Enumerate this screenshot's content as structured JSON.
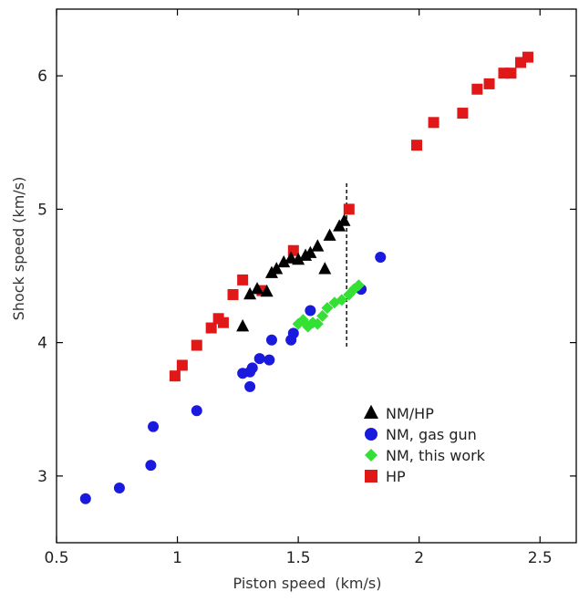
{
  "chart_data": {
    "type": "scatter",
    "xlabel": "Piston speed  (km/s)",
    "ylabel": "Shock speed (km/s)",
    "xlim": [
      0.5,
      2.65
    ],
    "ylim": [
      2.5,
      6.5
    ],
    "x_ticks": [
      0.5,
      1,
      1.5,
      2,
      2.5
    ],
    "x_tick_labels": [
      "0.5",
      "1",
      "1.5",
      "2",
      "2.5"
    ],
    "y_ticks": [
      3,
      4,
      5,
      6
    ],
    "y_tick_labels": [
      "3",
      "4",
      "5",
      "6"
    ],
    "grid": false,
    "legend_position": "bottom-right",
    "reference_line": {
      "x": 1.7,
      "y_from": 3.97,
      "y_to": 5.2,
      "style": "dashed"
    },
    "series": [
      {
        "name": "NM/HP",
        "marker": "triangle",
        "color": "#000000",
        "points": [
          [
            1.27,
            4.12
          ],
          [
            1.3,
            4.36
          ],
          [
            1.33,
            4.4
          ],
          [
            1.37,
            4.38
          ],
          [
            1.39,
            4.52
          ],
          [
            1.41,
            4.55
          ],
          [
            1.44,
            4.6
          ],
          [
            1.47,
            4.63
          ],
          [
            1.5,
            4.62
          ],
          [
            1.53,
            4.65
          ],
          [
            1.55,
            4.67
          ],
          [
            1.58,
            4.72
          ],
          [
            1.61,
            4.55
          ],
          [
            1.63,
            4.8
          ],
          [
            1.67,
            4.87
          ],
          [
            1.69,
            4.91
          ]
        ]
      },
      {
        "name": "NM, gas gun",
        "marker": "circle",
        "color": "#1a1adf",
        "points": [
          [
            0.62,
            2.83
          ],
          [
            0.76,
            2.91
          ],
          [
            0.89,
            3.08
          ],
          [
            0.9,
            3.37
          ],
          [
            1.08,
            3.49
          ],
          [
            1.27,
            3.77
          ],
          [
            1.3,
            3.67
          ],
          [
            1.3,
            3.78
          ],
          [
            1.31,
            3.81
          ],
          [
            1.34,
            3.88
          ],
          [
            1.38,
            3.87
          ],
          [
            1.39,
            4.02
          ],
          [
            1.47,
            4.02
          ],
          [
            1.48,
            4.07
          ],
          [
            1.55,
            4.24
          ],
          [
            1.76,
            4.4
          ],
          [
            1.84,
            4.64
          ]
        ]
      },
      {
        "name": "NM, this work",
        "marker": "diamond",
        "color": "#33e033",
        "points": [
          [
            1.5,
            4.14
          ],
          [
            1.52,
            4.17
          ],
          [
            1.54,
            4.12
          ],
          [
            1.56,
            4.15
          ],
          [
            1.58,
            4.14
          ],
          [
            1.6,
            4.2
          ],
          [
            1.62,
            4.26
          ],
          [
            1.65,
            4.3
          ],
          [
            1.68,
            4.32
          ],
          [
            1.71,
            4.36
          ],
          [
            1.73,
            4.4
          ],
          [
            1.75,
            4.43
          ]
        ]
      },
      {
        "name": "HP",
        "marker": "square",
        "color": "#e01818",
        "points": [
          [
            0.99,
            3.75
          ],
          [
            1.02,
            3.83
          ],
          [
            1.08,
            3.98
          ],
          [
            1.14,
            4.11
          ],
          [
            1.17,
            4.18
          ],
          [
            1.19,
            4.15
          ],
          [
            1.23,
            4.36
          ],
          [
            1.27,
            4.47
          ],
          [
            1.35,
            4.39
          ],
          [
            1.48,
            4.69
          ],
          [
            1.71,
            5.0
          ],
          [
            1.99,
            5.48
          ],
          [
            2.06,
            5.65
          ],
          [
            2.18,
            5.72
          ],
          [
            2.24,
            5.9
          ],
          [
            2.29,
            5.94
          ],
          [
            2.35,
            6.02
          ],
          [
            2.38,
            6.02
          ],
          [
            2.42,
            6.1
          ],
          [
            2.45,
            6.14
          ]
        ]
      }
    ]
  }
}
